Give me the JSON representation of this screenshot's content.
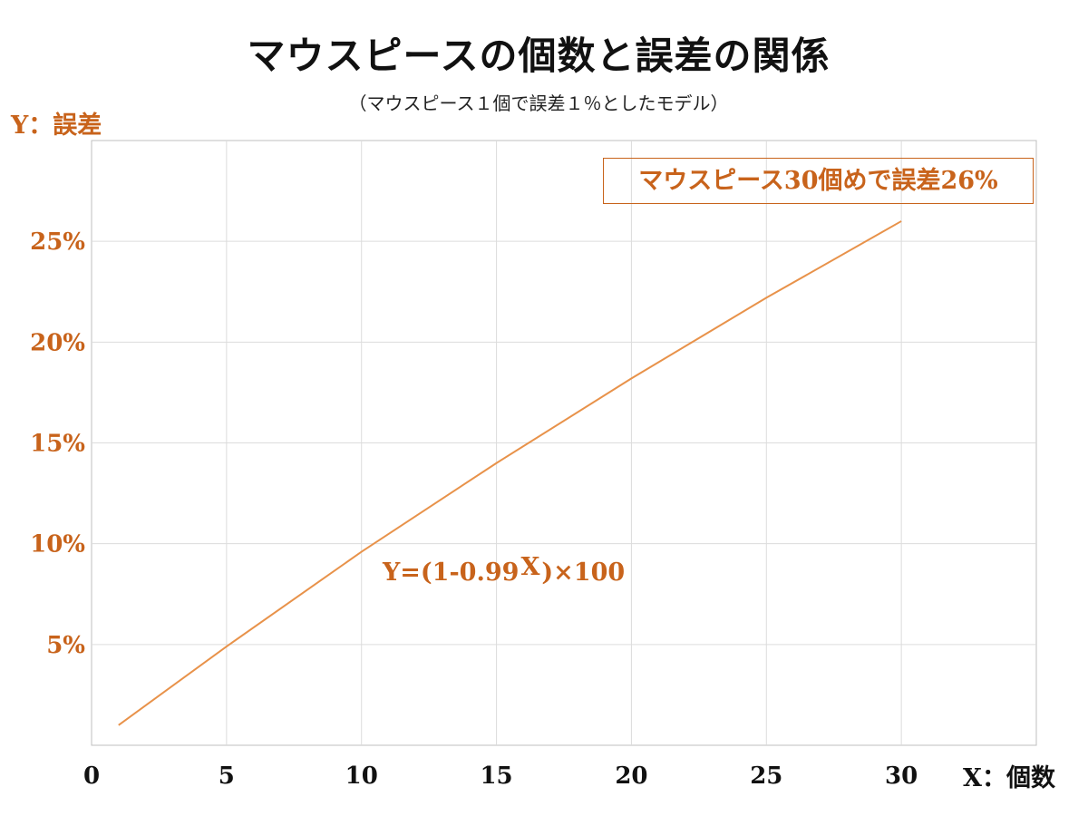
{
  "colors": {
    "accent": "#c8631b",
    "line": "#e8924a",
    "grid": "#dcdcdc",
    "axis": "#bfbfbf"
  },
  "chart_data": {
    "type": "line",
    "title": "マウスピースの個数と誤差の関係",
    "subtitle": "（マウスピース１個で誤差１％としたモデル）",
    "ylabel": "Y：誤差",
    "xlabel": "X：個数",
    "xlim": [
      0,
      35
    ],
    "ylim": [
      0,
      30
    ],
    "x_ticks": [
      "0",
      "5",
      "10",
      "15",
      "20",
      "25",
      "30"
    ],
    "y_ticks": [
      "5%",
      "10%",
      "15%",
      "20%",
      "25%"
    ],
    "grid": true,
    "series": [
      {
        "x": [
          1,
          5,
          10,
          15,
          20,
          25,
          30
        ],
        "values": [
          1,
          4.9,
          9.6,
          14.0,
          18.2,
          22.2,
          26.0
        ]
      }
    ],
    "annotations": {
      "callout": "マウスピース30個めで誤差26%",
      "formula_prefix": "Y=(1-0.99",
      "formula_exponent": "X",
      "formula_suffix": ")×100"
    }
  }
}
